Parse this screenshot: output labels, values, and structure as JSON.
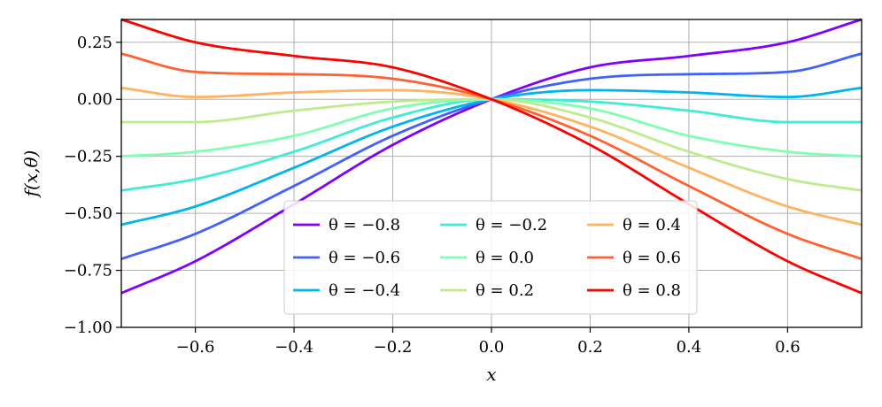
{
  "chart_data": {
    "type": "line",
    "title": "",
    "xlabel": "x",
    "ylabel": "f(x,θ)",
    "xlim": [
      -0.75,
      0.75
    ],
    "ylim": [
      -1.0,
      0.35
    ],
    "x_ticks": [
      -0.6,
      -0.4,
      -0.2,
      0.0,
      0.2,
      0.4,
      0.6
    ],
    "x_tick_labels": [
      "−0.6",
      "−0.4",
      "−0.2",
      "0.0",
      "0.2",
      "0.4",
      "0.6"
    ],
    "y_ticks": [
      -1.0,
      -0.75,
      -0.5,
      -0.25,
      0.0,
      0.25
    ],
    "y_tick_labels": [
      "−1.00",
      "−0.75",
      "−0.50",
      "−0.25",
      "0.00",
      "0.25"
    ],
    "grid": true,
    "legend_position": "bottom-center",
    "legend_columns": 3,
    "x": [
      -0.75,
      -0.6,
      -0.4,
      -0.2,
      0.0,
      0.2,
      0.4,
      0.6,
      0.75
    ],
    "series": [
      {
        "name": "θ = −0.8",
        "color": "#8000ff",
        "values": [
          -0.85,
          -0.71,
          -0.46,
          -0.2,
          0.0,
          0.14,
          0.19,
          0.25,
          0.35
        ]
      },
      {
        "name": "θ = −0.6",
        "color": "#4062fa",
        "values": [
          -0.7,
          -0.59,
          -0.38,
          -0.16,
          0.0,
          0.09,
          0.11,
          0.12,
          0.2
        ]
      },
      {
        "name": "θ = −0.4",
        "color": "#00b5eb",
        "values": [
          -0.55,
          -0.47,
          -0.3,
          -0.12,
          0.0,
          0.04,
          0.03,
          0.01,
          0.05
        ]
      },
      {
        "name": "θ = −0.2",
        "color": "#40ecd4",
        "values": [
          -0.4,
          -0.35,
          -0.23,
          -0.08,
          0.0,
          -0.01,
          -0.05,
          -0.1,
          -0.1
        ]
      },
      {
        "name": "θ = 0.0",
        "color": "#80ffb4",
        "values": [
          -0.25,
          -0.23,
          -0.16,
          -0.04,
          0.0,
          -0.04,
          -0.16,
          -0.23,
          -0.25
        ]
      },
      {
        "name": "θ = 0.2",
        "color": "#c0eb8d",
        "values": [
          -0.1,
          -0.1,
          -0.05,
          -0.01,
          0.0,
          -0.08,
          -0.23,
          -0.35,
          -0.4
        ]
      },
      {
        "name": "θ = 0.4",
        "color": "#ffb360",
        "values": [
          0.05,
          0.01,
          0.03,
          0.04,
          0.0,
          -0.12,
          -0.3,
          -0.47,
          -0.55
        ]
      },
      {
        "name": "θ = 0.6",
        "color": "#ff6230",
        "values": [
          0.2,
          0.12,
          0.11,
          0.09,
          0.0,
          -0.16,
          -0.38,
          -0.59,
          -0.7
        ]
      },
      {
        "name": "θ = 0.8",
        "color": "#ff0000",
        "values": [
          0.35,
          0.25,
          0.19,
          0.14,
          0.0,
          -0.2,
          -0.46,
          -0.71,
          -0.85
        ]
      }
    ]
  }
}
